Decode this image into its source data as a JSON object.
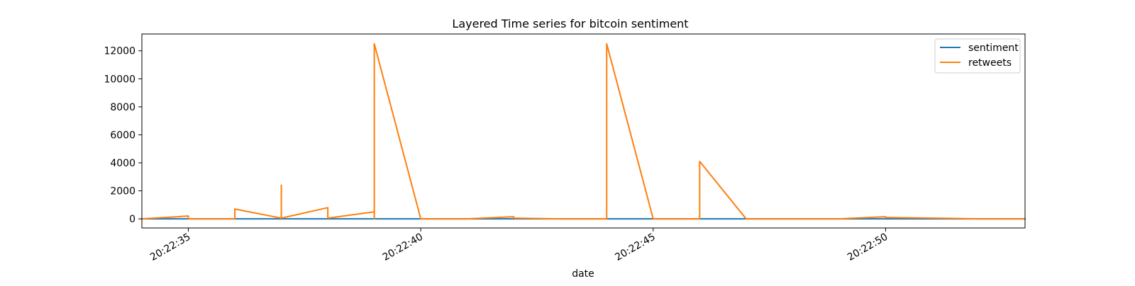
{
  "chart_data": {
    "type": "line",
    "title": "Layered Time series for bitcoin sentiment",
    "xlabel": "date",
    "ylabel": "",
    "x_type": "time",
    "xlim": [
      "20:22:34",
      "20:22:53"
    ],
    "ylim": [
      -650,
      13200
    ],
    "xticks": [
      "20:22:35",
      "20:22:40",
      "20:22:45",
      "20:22:50"
    ],
    "yticks": [
      0,
      2000,
      4000,
      6000,
      8000,
      10000,
      12000
    ],
    "grid": false,
    "legend": {
      "position": "top-right",
      "entries": [
        "sentiment",
        "retweets"
      ]
    },
    "series": [
      {
        "name": "sentiment",
        "color": "#1f77b4",
        "points": [
          [
            "20:22:34",
            0
          ],
          [
            "20:22:35",
            0
          ],
          [
            "20:22:36",
            0
          ],
          [
            "20:22:37",
            0
          ],
          [
            "20:22:38",
            0
          ],
          [
            "20:22:39",
            0
          ],
          [
            "20:22:40",
            0
          ],
          [
            "20:22:41",
            0
          ],
          [
            "20:22:42",
            0
          ],
          [
            "20:22:43",
            0
          ],
          [
            "20:22:44",
            0
          ],
          [
            "20:22:45",
            0
          ],
          [
            "20:22:46",
            0
          ],
          [
            "20:22:47",
            0
          ],
          [
            "20:22:48",
            0
          ],
          [
            "20:22:49",
            0
          ],
          [
            "20:22:50",
            0
          ],
          [
            "20:22:51",
            0
          ],
          [
            "20:22:52",
            0
          ],
          [
            "20:22:53",
            0
          ]
        ]
      },
      {
        "name": "retweets",
        "color": "#ff7f0e",
        "points": [
          [
            "20:22:34",
            0
          ],
          [
            "20:22:35",
            200
          ],
          [
            "20:22:35",
            0
          ],
          [
            "20:22:36",
            0
          ],
          [
            "20:22:36",
            700
          ],
          [
            "20:22:37",
            50
          ],
          [
            "20:22:37",
            2400
          ],
          [
            "20:22:37",
            50
          ],
          [
            "20:22:38",
            800
          ],
          [
            "20:22:38",
            50
          ],
          [
            "20:22:39",
            500
          ],
          [
            "20:22:39",
            0
          ],
          [
            "20:22:39",
            12500
          ],
          [
            "20:22:40",
            0
          ],
          [
            "20:22:41",
            0
          ],
          [
            "20:22:42",
            150
          ],
          [
            "20:22:42",
            50
          ],
          [
            "20:22:43",
            0
          ],
          [
            "20:22:44",
            0
          ],
          [
            "20:22:44",
            12500
          ],
          [
            "20:22:45",
            0
          ],
          [
            "20:22:46",
            0
          ],
          [
            "20:22:46",
            4100
          ],
          [
            "20:22:47",
            0
          ],
          [
            "20:22:48",
            0
          ],
          [
            "20:22:49",
            0
          ],
          [
            "20:22:50",
            150
          ],
          [
            "20:22:50",
            100
          ],
          [
            "20:22:51",
            50
          ],
          [
            "20:22:52",
            0
          ],
          [
            "20:22:53",
            0
          ]
        ]
      }
    ]
  }
}
